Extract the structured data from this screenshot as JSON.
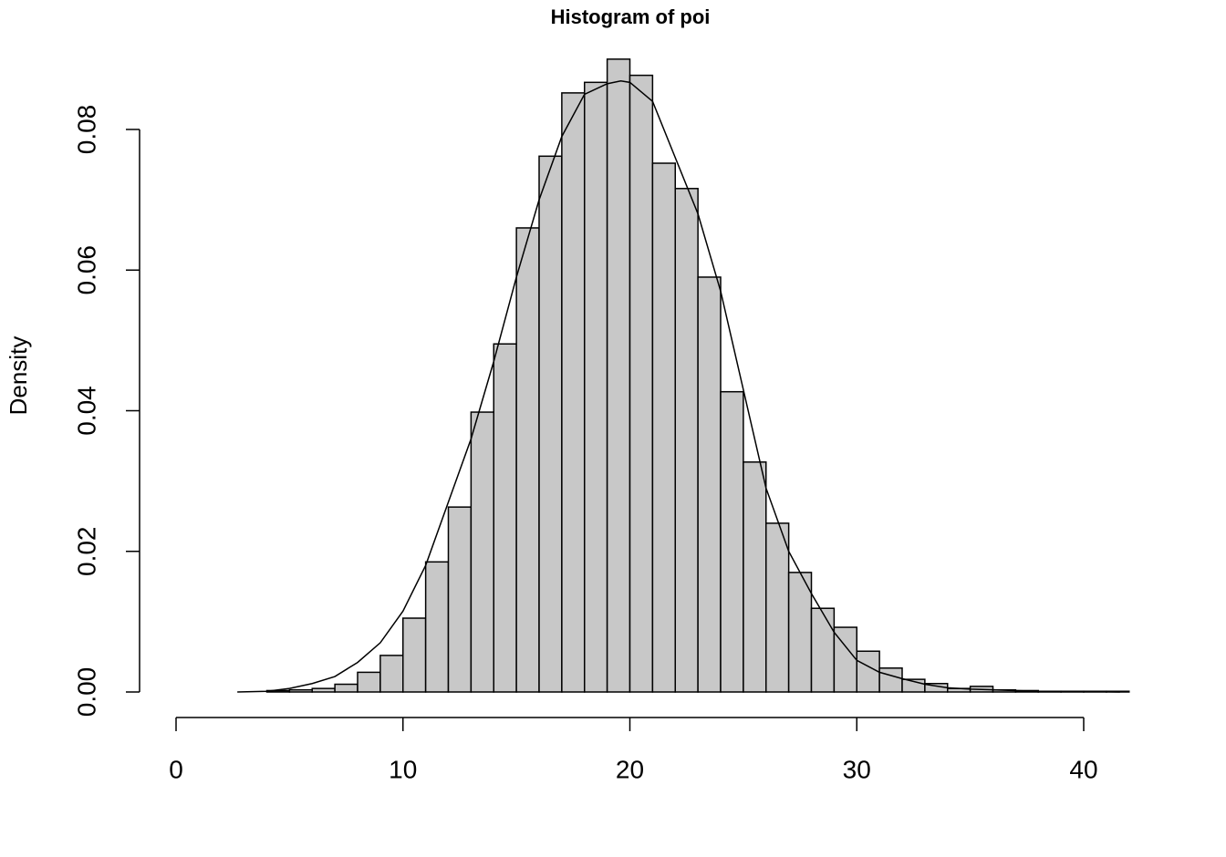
{
  "chart_data": {
    "type": "histogram",
    "title": "Histogram of poi",
    "y_label": "Density",
    "bins": [
      4,
      5,
      6,
      7,
      8,
      9,
      10,
      11,
      12,
      13,
      14,
      15,
      16,
      17,
      18,
      19,
      20,
      21,
      22,
      23,
      24,
      25,
      26,
      27,
      28,
      29,
      30,
      31,
      32,
      33,
      34,
      35,
      36,
      37,
      38,
      39,
      40,
      41,
      42
    ],
    "values": [
      0.0002,
      0.0003,
      0.0005,
      0.0011,
      0.0028,
      0.0052,
      0.0105,
      0.0185,
      0.0263,
      0.0398,
      0.0495,
      0.066,
      0.0762,
      0.0852,
      0.0867,
      0.09,
      0.0877,
      0.0752,
      0.0716,
      0.059,
      0.0427,
      0.0327,
      0.024,
      0.017,
      0.0119,
      0.0092,
      0.0058,
      0.0034,
      0.0018,
      0.0012,
      0.0005,
      0.0008,
      0.0003,
      0.0002,
      0.0001,
      0.0001,
      0.0001,
      0.0001
    ],
    "color": "#c8c8c8",
    "curve": {
      "x": [
        2.7,
        4,
        5,
        6,
        7,
        8,
        9,
        10,
        11,
        12,
        13,
        14,
        15,
        16,
        17,
        18,
        19,
        19.6,
        20,
        21,
        22,
        23,
        24,
        25,
        26,
        27,
        28,
        29,
        30,
        31,
        32,
        33,
        34,
        35,
        36,
        37,
        38,
        40,
        41.6
      ],
      "y": [
        0,
        0.0001,
        0.0005,
        0.0012,
        0.0022,
        0.0042,
        0.007,
        0.0115,
        0.018,
        0.027,
        0.036,
        0.047,
        0.059,
        0.07,
        0.079,
        0.085,
        0.0865,
        0.0869,
        0.0867,
        0.084,
        0.076,
        0.068,
        0.057,
        0.043,
        0.029,
        0.02,
        0.014,
        0.0085,
        0.0045,
        0.0028,
        0.0019,
        0.0011,
        0.0006,
        0.0004,
        0.0003,
        0.0002,
        0.0001,
        0.0001,
        0
      ]
    },
    "xlim": [
      0,
      40
    ],
    "xticks": [
      0,
      10,
      20,
      30,
      40
    ],
    "ylim": [
      0,
      0.08
    ],
    "yticks": [
      {
        "value": 0,
        "label": "0.00"
      },
      {
        "value": 0.02,
        "label": "0.02"
      },
      {
        "value": 0.04,
        "label": "0.04"
      },
      {
        "value": 0.06,
        "label": "0.06"
      },
      {
        "value": 0.08,
        "label": "0.08"
      }
    ]
  }
}
